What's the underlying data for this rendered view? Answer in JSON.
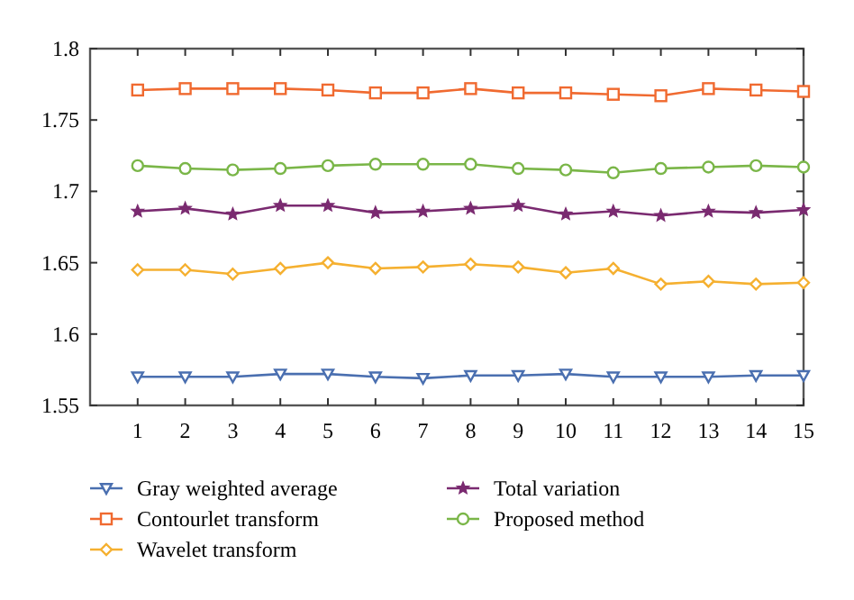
{
  "chart_data": {
    "type": "line",
    "x": [
      1,
      2,
      3,
      4,
      5,
      6,
      7,
      8,
      9,
      10,
      11,
      12,
      13,
      14,
      15
    ],
    "xlim": [
      0,
      15
    ],
    "xticks": [
      1,
      2,
      3,
      4,
      5,
      6,
      7,
      8,
      9,
      10,
      11,
      12,
      13,
      14,
      15
    ],
    "ylim": [
      1.55,
      1.8
    ],
    "yticks": [
      1.55,
      1.6,
      1.65,
      1.7,
      1.75,
      1.8
    ],
    "grid": false,
    "legend": "bottom",
    "series": [
      {
        "name": "Gray weighted average",
        "color": "#4a6fb0",
        "marker": "triangle",
        "values": [
          1.57,
          1.57,
          1.57,
          1.572,
          1.572,
          1.57,
          1.569,
          1.571,
          1.571,
          1.572,
          1.57,
          1.57,
          1.57,
          1.571,
          1.571
        ]
      },
      {
        "name": "Contourlet transform",
        "color": "#f06a30",
        "marker": "square",
        "values": [
          1.771,
          1.772,
          1.772,
          1.772,
          1.771,
          1.769,
          1.769,
          1.772,
          1.769,
          1.769,
          1.768,
          1.767,
          1.772,
          1.771,
          1.77
        ]
      },
      {
        "name": "Wavelet transform",
        "color": "#f5b030",
        "marker": "diamond",
        "values": [
          1.645,
          1.645,
          1.642,
          1.646,
          1.65,
          1.646,
          1.647,
          1.649,
          1.647,
          1.643,
          1.646,
          1.635,
          1.637,
          1.635,
          1.636
        ]
      },
      {
        "name": "Total variation",
        "color": "#7a2a70",
        "marker": "star",
        "values": [
          1.686,
          1.688,
          1.684,
          1.69,
          1.69,
          1.685,
          1.686,
          1.688,
          1.69,
          1.684,
          1.686,
          1.683,
          1.686,
          1.685,
          1.687
        ]
      },
      {
        "name": "Proposed method",
        "color": "#7ab648",
        "marker": "circle",
        "values": [
          1.718,
          1.716,
          1.715,
          1.716,
          1.718,
          1.719,
          1.719,
          1.719,
          1.716,
          1.715,
          1.713,
          1.716,
          1.717,
          1.718,
          1.717
        ]
      }
    ]
  }
}
